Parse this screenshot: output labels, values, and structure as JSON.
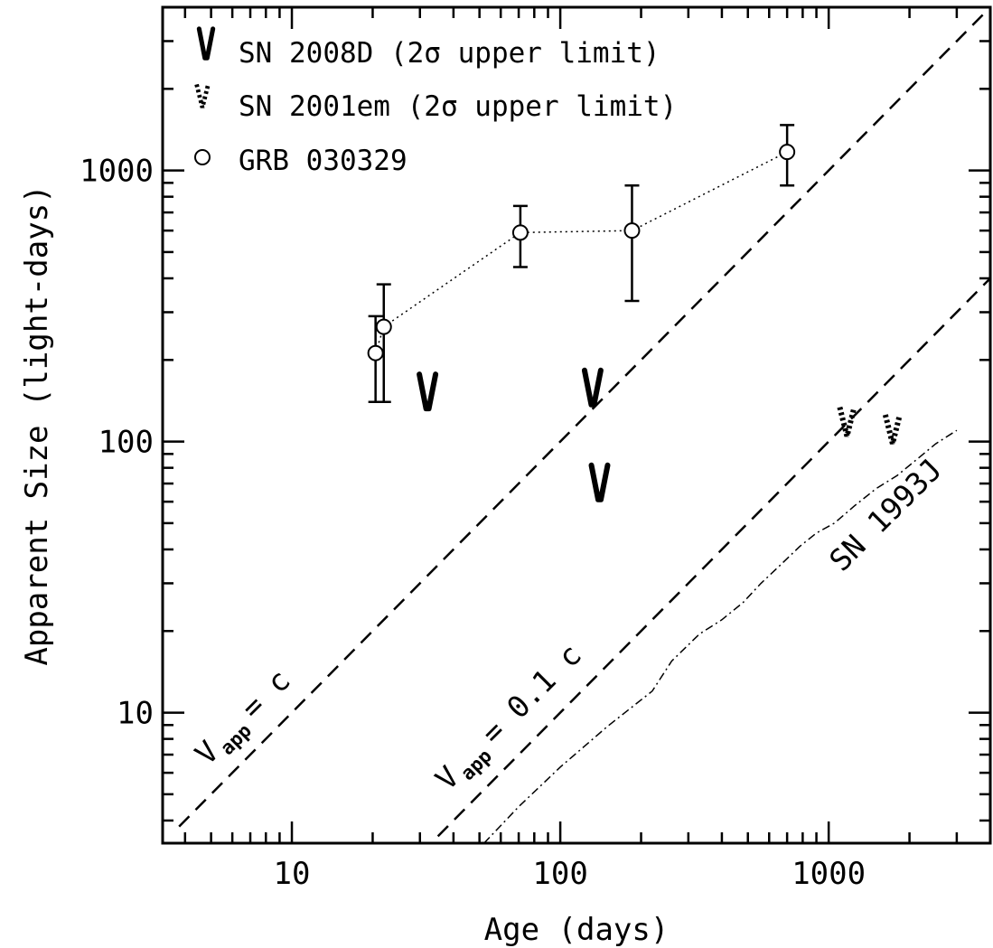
{
  "chart_data": {
    "type": "scatter",
    "xlabel": "Age (days)",
    "ylabel": "Apparent Size (light-days)",
    "xscale": "log",
    "yscale": "log",
    "xlim": [
      3.3,
      4000
    ],
    "ylim": [
      3.3,
      4000
    ],
    "x_tick_labels": [
      "10",
      "100",
      "1000"
    ],
    "y_tick_labels": [
      "10",
      "100",
      "1000"
    ],
    "x_major_ticks": [
      10,
      100,
      1000
    ],
    "y_major_ticks": [
      10,
      100,
      1000
    ],
    "legend_position": "top-left",
    "legend": [
      {
        "name": "SN 2008D (2σ upper limit)",
        "marker": "solid-v"
      },
      {
        "name": "SN 2001em (2σ upper limit)",
        "marker": "dotted-v"
      },
      {
        "name": "GRB 030329",
        "marker": "open-circle"
      }
    ],
    "series": [
      {
        "name": "GRB 030329",
        "marker": "open-circle",
        "line": "dotted",
        "points": [
          {
            "x": 20.5,
            "y": 212,
            "ylo": 140,
            "yhi": 290
          },
          {
            "x": 22,
            "y": 265,
            "ylo": 140,
            "yhi": 380
          },
          {
            "x": 71,
            "y": 590,
            "ylo": 440,
            "yhi": 740
          },
          {
            "x": 185,
            "y": 600,
            "ylo": 330,
            "yhi": 880
          },
          {
            "x": 700,
            "y": 1170,
            "ylo": 880,
            "yhi": 1470
          }
        ]
      },
      {
        "name": "SN 2008D (2σ upper limit)",
        "marker": "solid-v",
        "points": [
          {
            "x": 32,
            "y": 145
          },
          {
            "x": 132,
            "y": 150
          },
          {
            "x": 140,
            "y": 67
          }
        ]
      },
      {
        "name": "SN 2001em (2σ upper limit)",
        "marker": "dotted-v",
        "points": [
          {
            "x": 1170,
            "y": 113
          },
          {
            "x": 1730,
            "y": 106
          }
        ]
      }
    ],
    "reference_lines": [
      {
        "label": "V app = c",
        "coefficient": 1,
        "x_range": [
          3.8,
          4000
        ],
        "style": "dashed"
      },
      {
        "label": "V app = 0.1 c",
        "coefficient": 0.1,
        "x_range": [
          35,
          4000
        ],
        "style": "dashed"
      }
    ],
    "model_curve": {
      "label": "SN 1993J",
      "style": "dash-dot",
      "points": [
        [
          52,
          3.3
        ],
        [
          70,
          4.5
        ],
        [
          100,
          6.3
        ],
        [
          150,
          8.9
        ],
        [
          220,
          12.0
        ],
        [
          260,
          15.5
        ],
        [
          330,
          19.5
        ],
        [
          400,
          22.0
        ],
        [
          480,
          25.5
        ],
        [
          560,
          30.0
        ],
        [
          660,
          35.0
        ],
        [
          780,
          41.0
        ],
        [
          900,
          46.0
        ],
        [
          1050,
          50.0
        ],
        [
          1250,
          58.0
        ],
        [
          1500,
          67.0
        ],
        [
          1800,
          75.0
        ],
        [
          2100,
          85.0
        ],
        [
          2500,
          98.0
        ],
        [
          3000,
          110.0
        ]
      ]
    },
    "annotations": {
      "c_line_main": "V",
      "c_line_sub": "app",
      "c_line_eq": "= c",
      "tenth_line_main": "V",
      "tenth_line_sub": "app",
      "tenth_line_eq": "= 0.1 c",
      "sn1993j": "SN 1993J"
    }
  }
}
